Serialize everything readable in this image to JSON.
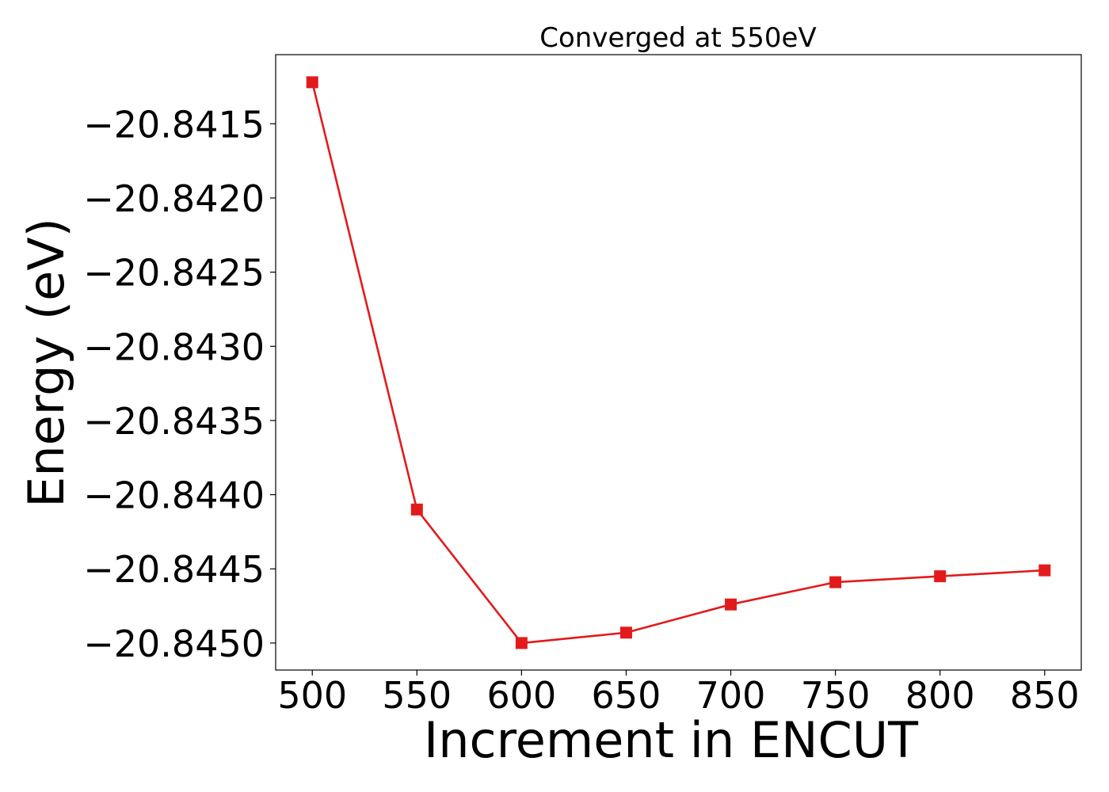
{
  "chart_data": {
    "type": "line",
    "title": "Converged at 550eV",
    "xlabel": "Increment in ENCUT",
    "ylabel": "Energy (eV)",
    "x": [
      500,
      550,
      600,
      650,
      700,
      750,
      800,
      850
    ],
    "series": [
      {
        "values": [
          -20.84122,
          -20.8441,
          -20.845,
          -20.84493,
          -20.84474,
          -20.84459,
          -20.84455,
          -20.84451
        ],
        "color": "#e31a1c",
        "marker": "square"
      }
    ],
    "xticks": [
      500,
      550,
      600,
      650,
      700,
      750,
      800,
      850
    ],
    "xtick_labels": [
      "500",
      "550",
      "600",
      "650",
      "700",
      "750",
      "800",
      "850"
    ],
    "yticks": [
      -20.8415,
      -20.842,
      -20.8425,
      -20.843,
      -20.8435,
      -20.844,
      -20.8445,
      -20.845
    ],
    "ytick_labels": [
      "−20.8415",
      "−20.8420",
      "−20.8425",
      "−20.8430",
      "−20.8435",
      "−20.8440",
      "−20.8445",
      "−20.8450"
    ],
    "xlim": [
      482.5,
      867.5
    ],
    "ylim": [
      -20.845182,
      -20.841034
    ],
    "grid": false,
    "legend": "none"
  }
}
